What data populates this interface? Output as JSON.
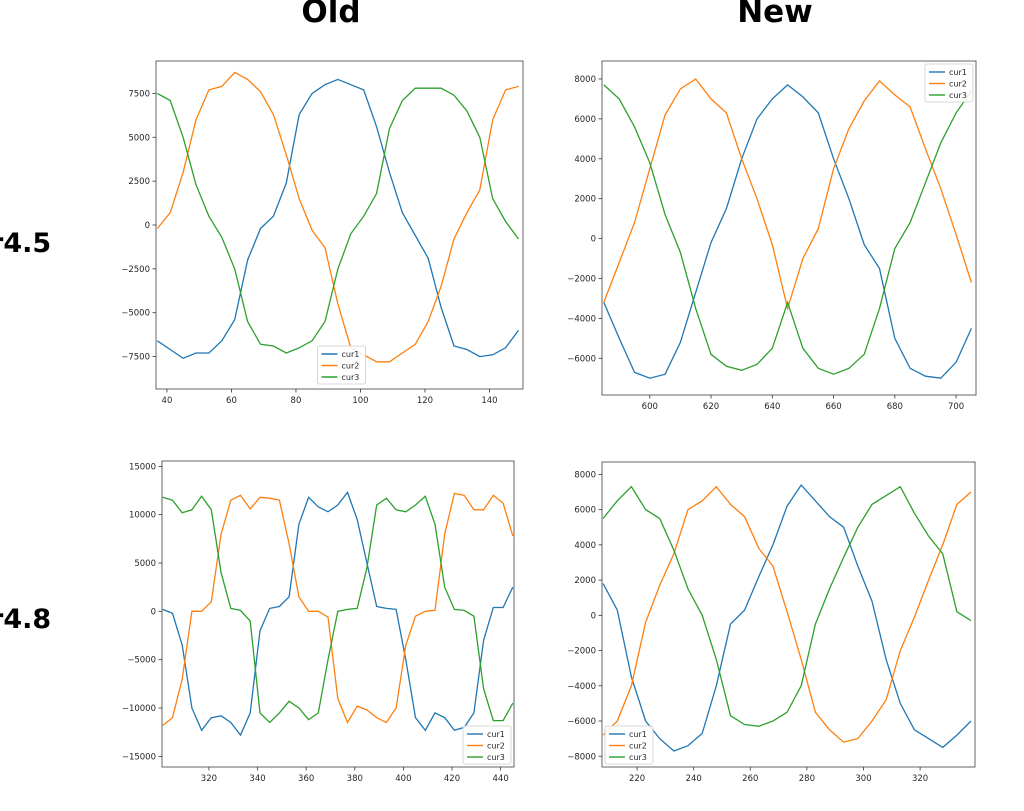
{
  "column_titles": [
    "Old",
    "New"
  ],
  "row_labels": [
    "r4.5",
    "r4.8"
  ],
  "colors": {
    "cur1": "#1f77b4",
    "cur2": "#ff7f0e",
    "cur3": "#2ca02c"
  },
  "chart_data": [
    {
      "type": "line",
      "row": "r4.5",
      "column": "Old",
      "xlim": [
        36.6,
        150.4
      ],
      "ylim": [
        -9350,
        9350
      ],
      "xticks": [
        40,
        60,
        80,
        100,
        120,
        140
      ],
      "yticks": [
        -7500,
        -5000,
        -2500,
        0,
        2500,
        5000,
        7500
      ],
      "legend": "lower-center",
      "grid": false,
      "x": [
        37,
        41,
        45,
        49,
        53,
        57,
        61,
        65,
        69,
        73,
        77,
        81,
        85,
        89,
        93,
        97,
        101,
        105,
        109,
        113,
        117,
        121,
        125,
        129,
        133,
        137,
        141,
        145,
        149
      ],
      "series": [
        {
          "name": "cur1",
          "values": [
            -6600,
            -7100,
            -7600,
            -7300,
            -7300,
            -6600,
            -5400,
            -2000,
            -200,
            500,
            2400,
            6300,
            7500,
            8000,
            8300,
            8000,
            7700,
            5600,
            3000,
            700,
            -600,
            -1900,
            -4700,
            -6900,
            -7100,
            -7500,
            -7400,
            -7000,
            -6000
          ]
        },
        {
          "name": "cur2",
          "values": [
            -200,
            700,
            3000,
            6000,
            7700,
            7900,
            8700,
            8300,
            7600,
            6300,
            4000,
            1500,
            -300,
            -1300,
            -4500,
            -7000,
            -7400,
            -7800,
            -7800,
            -7300,
            -6800,
            -5500,
            -3500,
            -800,
            700,
            2000,
            6000,
            7700,
            7900
          ]
        },
        {
          "name": "cur3",
          "values": [
            7500,
            7100,
            5000,
            2300,
            500,
            -700,
            -2500,
            -5500,
            -6800,
            -6900,
            -7300,
            -7000,
            -6600,
            -5500,
            -2500,
            -500,
            500,
            1800,
            5500,
            7100,
            7800,
            7800,
            7800,
            7400,
            6500,
            5000,
            1500,
            200,
            -800
          ]
        }
      ]
    },
    {
      "type": "line",
      "row": "r4.5",
      "column": "New",
      "xlim": [
        584.4,
        706.5
      ],
      "ylim": [
        -7840,
        8900
      ],
      "xticks": [
        600,
        620,
        640,
        660,
        680,
        700
      ],
      "yticks": [
        -6000,
        -4000,
        -2000,
        0,
        2000,
        4000,
        6000,
        8000
      ],
      "legend": "upper-right",
      "grid": false,
      "x": [
        585,
        590,
        595,
        600,
        605,
        610,
        615,
        620,
        625,
        630,
        635,
        640,
        645,
        650,
        655,
        660,
        665,
        670,
        675,
        680,
        685,
        690,
        695,
        700,
        705
      ],
      "series": [
        {
          "name": "cur1",
          "values": [
            -3200,
            -5000,
            -6700,
            -7000,
            -6800,
            -5200,
            -2700,
            -200,
            1500,
            4000,
            6000,
            7000,
            7700,
            7100,
            6300,
            4000,
            2000,
            -300,
            -1500,
            -5000,
            -6500,
            -6900,
            -7000,
            -6200,
            -4500
          ]
        },
        {
          "name": "cur2",
          "values": [
            -3200,
            -1200,
            800,
            3500,
            6200,
            7500,
            8000,
            7000,
            6300,
            4000,
            2000,
            -300,
            -3500,
            -1000,
            500,
            3500,
            5500,
            6900,
            7900,
            7200,
            6600,
            4500,
            2500,
            200,
            -2200
          ]
        },
        {
          "name": "cur3",
          "values": [
            7700,
            7000,
            5600,
            3800,
            1200,
            -700,
            -3500,
            -5800,
            -6400,
            -6600,
            -6300,
            -5500,
            -3200,
            -5500,
            -6500,
            -6800,
            -6500,
            -5800,
            -3500,
            -500,
            800,
            2800,
            4800,
            6300,
            7400
          ]
        }
      ]
    },
    {
      "type": "line",
      "row": "r4.8",
      "column": "Old",
      "xlim": [
        300.7,
        445.5
      ],
      "ylim": [
        -16100,
        15550
      ],
      "xticks": [
        320,
        340,
        360,
        380,
        400,
        420,
        440
      ],
      "yticks": [
        -15000,
        -10000,
        -5000,
        0,
        5000,
        10000,
        15000
      ],
      "legend": "lower-right",
      "grid": false,
      "x": [
        301,
        305,
        309,
        313,
        317,
        321,
        325,
        329,
        333,
        337,
        341,
        345,
        349,
        353,
        357,
        361,
        365,
        369,
        373,
        377,
        381,
        385,
        389,
        393,
        397,
        401,
        405,
        409,
        413,
        417,
        421,
        425,
        429,
        433,
        437,
        441,
        445
      ],
      "series": [
        {
          "name": "cur1",
          "values": [
            200,
            -200,
            -3500,
            -10000,
            -12300,
            -11000,
            -10800,
            -11500,
            -12800,
            -10500,
            -2000,
            300,
            500,
            1500,
            9000,
            11800,
            10800,
            10300,
            11000,
            12300,
            9500,
            5000,
            500,
            300,
            200,
            -5000,
            -11000,
            -12300,
            -10500,
            -11000,
            -12300,
            -12000,
            -10500,
            -3000,
            400,
            400,
            2500
          ]
        },
        {
          "name": "cur2",
          "values": [
            -11800,
            -11000,
            -7000,
            0,
            0,
            1000,
            8000,
            11500,
            12000,
            10600,
            11800,
            11700,
            11500,
            7000,
            1500,
            0,
            0,
            -600,
            -9000,
            -11500,
            -9800,
            -10200,
            -11000,
            -11500,
            -10000,
            -3500,
            -500,
            0,
            100,
            8000,
            12200,
            12000,
            10500,
            10500,
            12000,
            11200,
            7800
          ]
        },
        {
          "name": "cur3",
          "values": [
            11800,
            11500,
            10200,
            10500,
            11900,
            10500,
            4000,
            300,
            100,
            -1000,
            -10500,
            -11500,
            -10500,
            -9300,
            -10000,
            -11200,
            -10500,
            -5000,
            0,
            200,
            300,
            4500,
            11000,
            11700,
            10500,
            10300,
            11000,
            11900,
            9000,
            2500,
            200,
            100,
            -500,
            -8000,
            -11300,
            -11300,
            -9500
          ]
        }
      ]
    },
    {
      "type": "line",
      "row": "r4.8",
      "column": "New",
      "xlim": [
        207.6,
        339.4
      ],
      "ylim": [
        -8610,
        8705
      ],
      "xticks": [
        220,
        240,
        260,
        280,
        300,
        320
      ],
      "yticks": [
        -8000,
        -6000,
        -4000,
        -2000,
        0,
        2000,
        4000,
        6000,
        8000
      ],
      "legend": "lower-left",
      "grid": false,
      "x": [
        208,
        213,
        218,
        223,
        228,
        233,
        238,
        243,
        248,
        253,
        258,
        263,
        268,
        273,
        278,
        283,
        288,
        293,
        298,
        303,
        308,
        313,
        318,
        323,
        328,
        333,
        338
      ],
      "series": [
        {
          "name": "cur1",
          "values": [
            1800,
            300,
            -3500,
            -6000,
            -7000,
            -7700,
            -7400,
            -6700,
            -4000,
            -500,
            300,
            2200,
            4000,
            6200,
            7400,
            6500,
            5600,
            5000,
            2800,
            800,
            -2500,
            -5000,
            -6500,
            -7000,
            -7500,
            -6800,
            -6000
          ]
        },
        {
          "name": "cur2",
          "values": [
            -6800,
            -6000,
            -4000,
            -400,
            1700,
            3500,
            6000,
            6500,
            7300,
            6300,
            5600,
            3800,
            2800,
            200,
            -2500,
            -5500,
            -6500,
            -7200,
            -7000,
            -6000,
            -4800,
            -2000,
            -100,
            2000,
            4000,
            6300,
            7000
          ]
        },
        {
          "name": "cur3",
          "values": [
            5500,
            6500,
            7300,
            6000,
            5500,
            3700,
            1500,
            0,
            -2500,
            -5700,
            -6200,
            -6300,
            -6000,
            -5500,
            -4000,
            -500,
            1500,
            3300,
            5000,
            6300,
            6800,
            7300,
            5800,
            4500,
            3500,
            200,
            -300
          ]
        }
      ]
    }
  ]
}
